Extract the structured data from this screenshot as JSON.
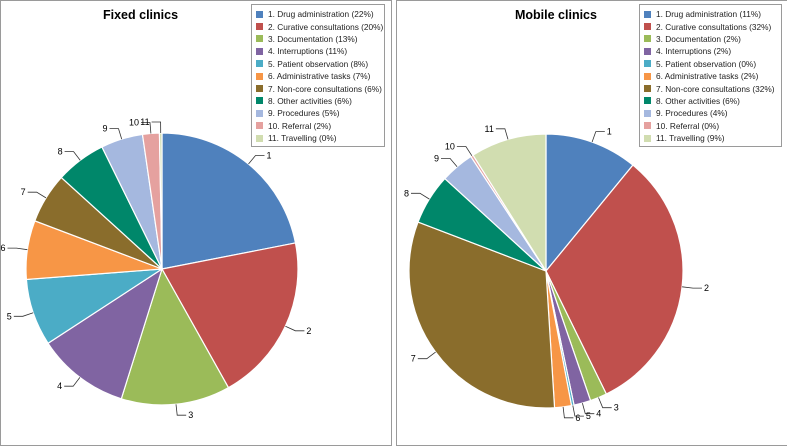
{
  "chart_data": [
    {
      "type": "pie",
      "title": "Fixed clinics",
      "legend_position": "top-right",
      "slices": [
        {
          "label": "1",
          "legend": "1. Drug administration (22%)",
          "value": 22,
          "color": "#4f81bd"
        },
        {
          "label": "2",
          "legend": "2. Curative consultations (20%)",
          "value": 20,
          "color": "#c0504d"
        },
        {
          "label": "3",
          "legend": "3. Documentation (13%)",
          "value": 13,
          "color": "#9bbb59"
        },
        {
          "label": "4",
          "legend": "4. Interruptions (11%)",
          "value": 11,
          "color": "#8064a2"
        },
        {
          "label": "5",
          "legend": "5. Patient observation (8%)",
          "value": 8,
          "color": "#4bacc6"
        },
        {
          "label": "6",
          "legend": "6. Administrative tasks (7%)",
          "value": 7,
          "color": "#f79646"
        },
        {
          "label": "7",
          "legend": "7. Non-core consultations (6%)",
          "value": 6,
          "color": "#8a6d2c"
        },
        {
          "label": "8",
          "legend": "8. Other activities (6%)",
          "value": 6,
          "color": "#00876a"
        },
        {
          "label": "9",
          "legend": "9. Procedures (5%)",
          "value": 5,
          "color": "#a5b8df"
        },
        {
          "label": "10",
          "legend": "10. Referral (2%)",
          "value": 2,
          "color": "#e5a19f"
        },
        {
          "label": "11",
          "legend": "11. Travelling (0%)",
          "value": 0.3,
          "color": "#d1ddb0"
        }
      ]
    },
    {
      "type": "pie",
      "title": "Mobile clinics",
      "legend_position": "top-right",
      "slices": [
        {
          "label": "1",
          "legend": "1. Drug administration (11%)",
          "value": 11,
          "color": "#4f81bd"
        },
        {
          "label": "2",
          "legend": "2. Curative consultations (32%)",
          "value": 32,
          "color": "#c0504d"
        },
        {
          "label": "3",
          "legend": "3. Documentation (2%)",
          "value": 2,
          "color": "#9bbb59"
        },
        {
          "label": "4",
          "legend": "4. Interruptions (2%)",
          "value": 2,
          "color": "#8064a2"
        },
        {
          "label": "5",
          "legend": "5. Patient observation (0%)",
          "value": 0.3,
          "color": "#4bacc6"
        },
        {
          "label": "6",
          "legend": "6. Administrative tasks (2%)",
          "value": 2,
          "color": "#f79646"
        },
        {
          "label": "7",
          "legend": "7. Non-core consultations (32%)",
          "value": 32,
          "color": "#8a6d2c"
        },
        {
          "label": "8",
          "legend": "8. Other activities (6%)",
          "value": 6,
          "color": "#00876a"
        },
        {
          "label": "9",
          "legend": "9. Procedures (4%)",
          "value": 4,
          "color": "#a5b8df"
        },
        {
          "label": "10",
          "legend": "10. Referral (0%)",
          "value": 0.3,
          "color": "#e5a19f"
        },
        {
          "label": "11",
          "legend": "11. Travelling (9%)",
          "value": 9,
          "color": "#d1ddb0"
        }
      ]
    }
  ]
}
